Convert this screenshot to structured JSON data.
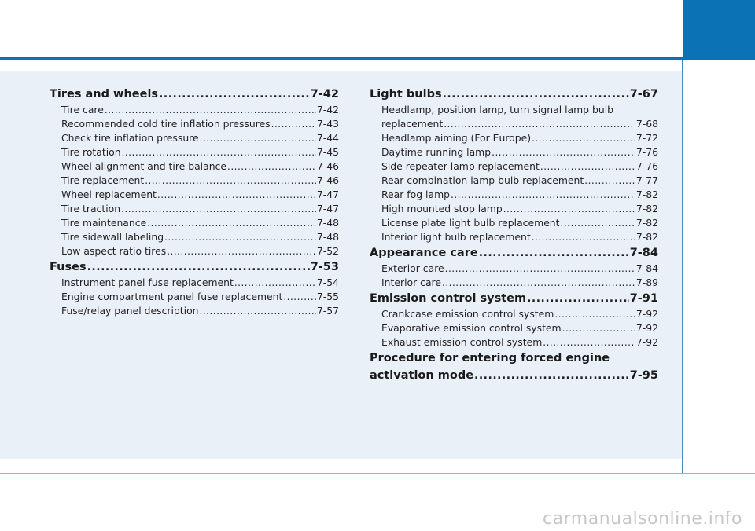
{
  "toc": {
    "left": [
      {
        "kind": "section",
        "title": "Tires and wheels",
        "page": "7-42"
      },
      {
        "kind": "sub",
        "title": "Tire care",
        "page": "7-42"
      },
      {
        "kind": "sub",
        "title": "Recommended cold tire inflation pressures",
        "page": "7-43"
      },
      {
        "kind": "sub",
        "title": "Check tire inflation pressure",
        "page": "7-44"
      },
      {
        "kind": "sub",
        "title": "Tire rotation",
        "page": "7-45"
      },
      {
        "kind": "sub",
        "title": "Wheel alignment and tire balance",
        "page": "7-46"
      },
      {
        "kind": "sub",
        "title": "Tire replacement",
        "page": "7-46"
      },
      {
        "kind": "sub",
        "title": "Wheel replacement",
        "page": "7-47"
      },
      {
        "kind": "sub",
        "title": "Tire traction",
        "page": "7-47"
      },
      {
        "kind": "sub",
        "title": "Tire maintenance",
        "page": "7-48"
      },
      {
        "kind": "sub",
        "title": "Tire sidewall labeling",
        "page": "7-48"
      },
      {
        "kind": "sub",
        "title": "Low aspect ratio tires",
        "page": "7-52"
      },
      {
        "kind": "section",
        "title": "Fuses",
        "page": "7-53"
      },
      {
        "kind": "sub",
        "title": "Instrument panel fuse replacement",
        "page": "7-54"
      },
      {
        "kind": "sub",
        "title": "Engine compartment panel fuse replacement",
        "page": "7-55"
      },
      {
        "kind": "sub",
        "title": "Fuse/relay panel description",
        "page": "7-57"
      }
    ],
    "right": {
      "light_bulbs": {
        "title": "Light bulbs",
        "page": "7-67"
      },
      "headlamp_line1": "Headlamp, position lamp, turn signal lamp bulb",
      "headlamp_line2": {
        "title": "replacement",
        "page": "7-68"
      },
      "light_items": [
        {
          "title": "Headlamp aiming (For Europe)",
          "page": "7-72"
        },
        {
          "title": "Daytime running lamp",
          "page": "7-76"
        },
        {
          "title": "Side repeater lamp replacement",
          "page": "7-76"
        },
        {
          "title": "Rear combination lamp bulb replacement",
          "page": "7-77"
        },
        {
          "title": "Rear fog lamp",
          "page": "7-82"
        },
        {
          "title": "High mounted stop lamp",
          "page": "7-82"
        },
        {
          "title": "License plate light bulb replacement",
          "page": "7-82"
        },
        {
          "title": "Interior light bulb replacement",
          "page": "7-82"
        }
      ],
      "appearance": {
        "title": "Appearance care",
        "page": "7-84"
      },
      "appearance_items": [
        {
          "title": "Exterior care",
          "page": "7-84"
        },
        {
          "title": "Interior care",
          "page": "7-89"
        }
      ],
      "emission": {
        "title": "Emission control system",
        "page": "7-91"
      },
      "emission_items": [
        {
          "title": "Crankcase emission control system",
          "page": "7-92"
        },
        {
          "title": "Evaporative emission control system",
          "page": "7-92"
        },
        {
          "title": "Exhaust emission control system",
          "page": "7-92"
        }
      ],
      "procedure_line1": "Procedure for entering forced engine",
      "procedure_line2": {
        "title": "activation mode",
        "page": "7-95"
      }
    }
  },
  "watermark": "carmanualsonline.info",
  "colors": {
    "accent": "#0b72b5",
    "panel": "#e9f0f7"
  }
}
